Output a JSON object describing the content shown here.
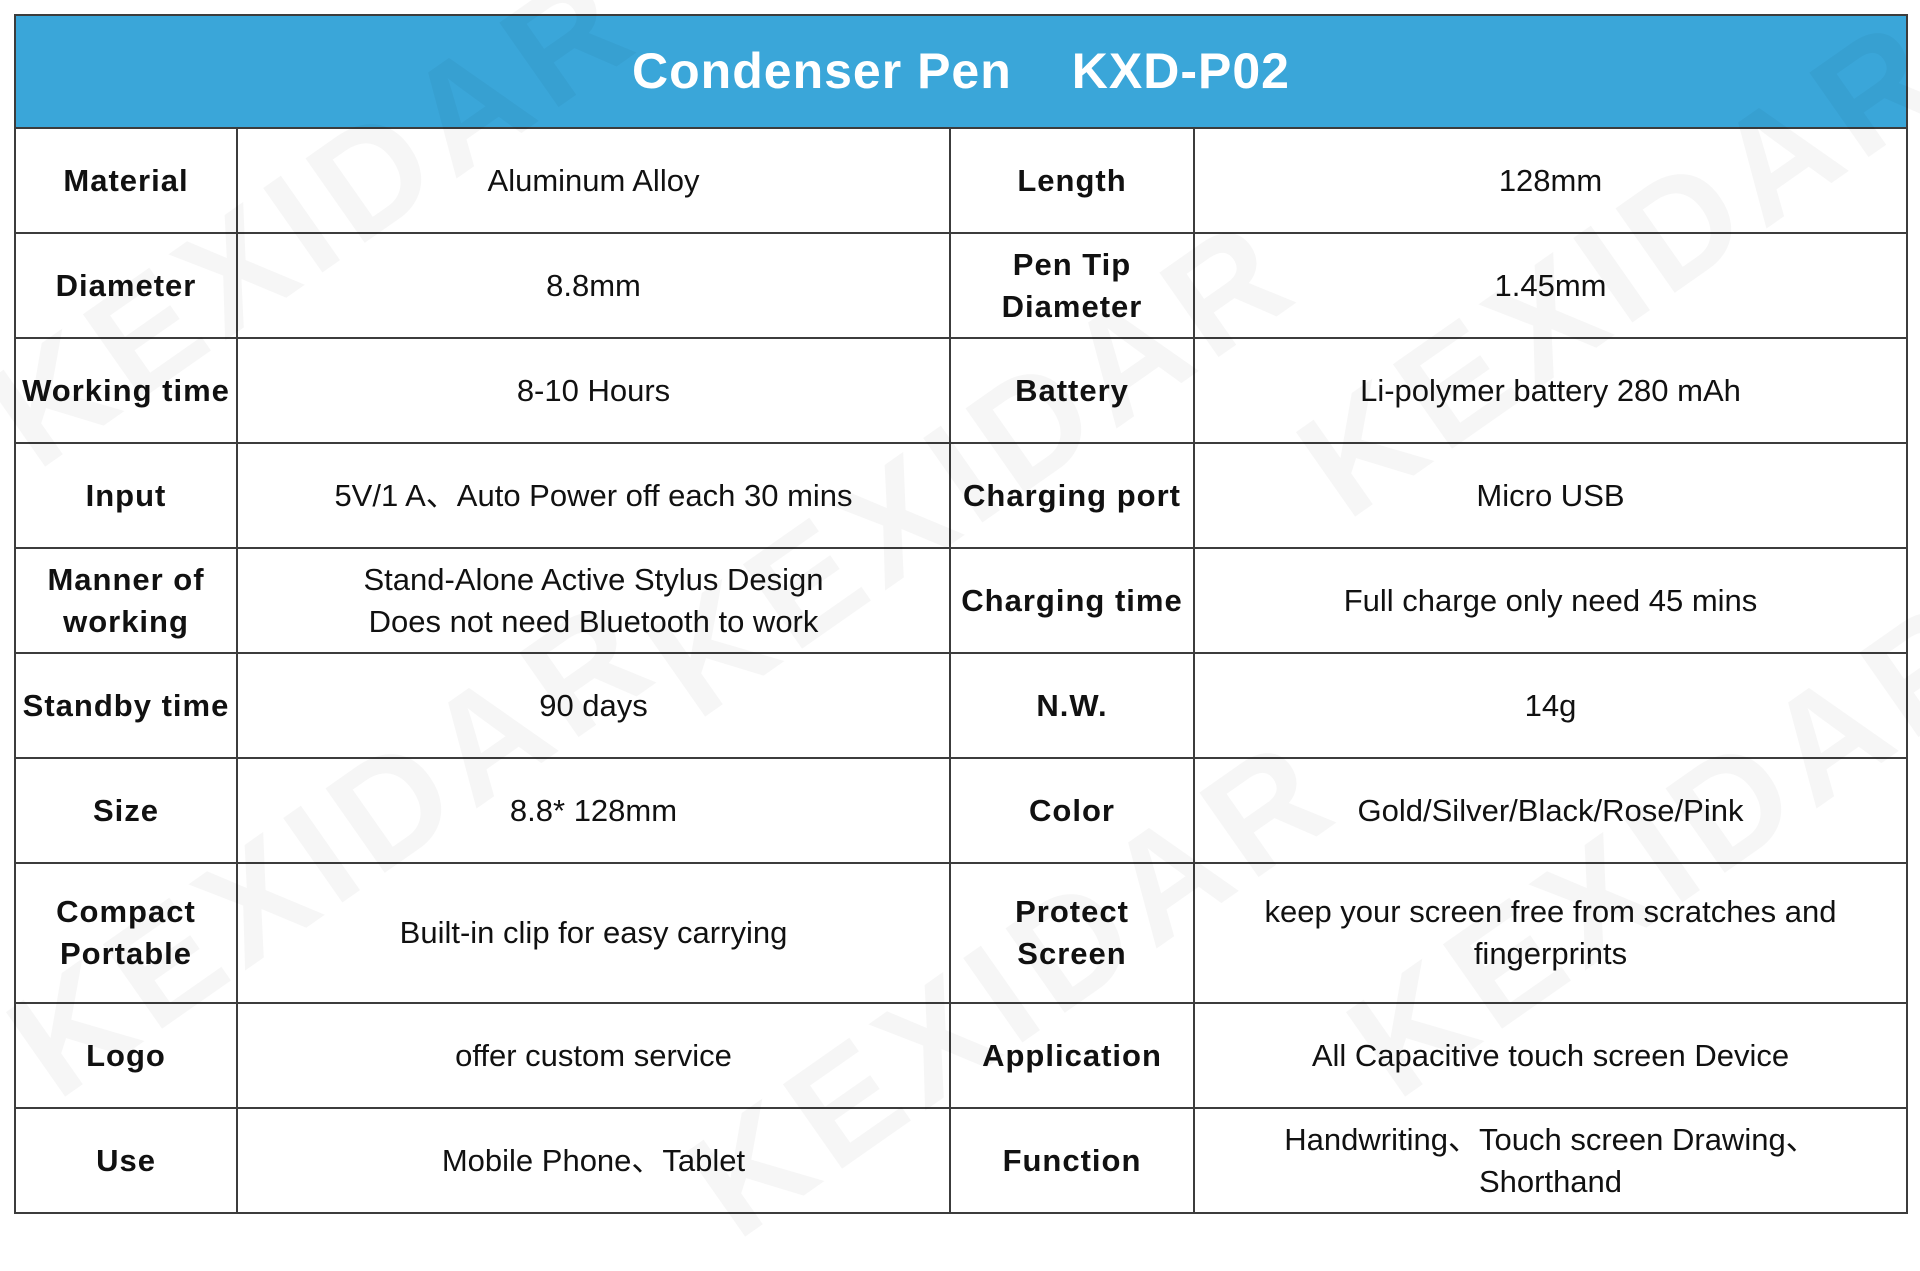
{
  "colors": {
    "header_background": "#3aa6d9",
    "header_text": "#ffffff",
    "border": "#3c3c3c",
    "text": "#111111",
    "watermark": "KEXIDAR"
  },
  "header": {
    "product": "Condenser Pen",
    "model": "KXD-P02"
  },
  "watermark_text": "KEXIDAR",
  "rows": [
    {
      "label1": "Material",
      "value1": [
        "Aluminum Alloy"
      ],
      "label2": "Length",
      "value2": [
        "128mm"
      ]
    },
    {
      "label1": "Diameter",
      "value1": [
        "8.8mm"
      ],
      "label2": [
        "Pen Tip",
        "Diameter"
      ],
      "value2": [
        "1.45mm"
      ]
    },
    {
      "label1": "Working time",
      "value1": [
        "8-10 Hours"
      ],
      "label2": "Battery",
      "value2": [
        "Li-polymer battery 280 mAh"
      ]
    },
    {
      "label1": "Input",
      "value1": [
        "5V/1 A、Auto Power off each 30 mins"
      ],
      "label2": "Charging port",
      "value2": [
        "Micro USB"
      ]
    },
    {
      "label1": [
        "Manner of",
        "working"
      ],
      "value1": [
        "Stand-Alone Active Stylus Design",
        "Does not need Bluetooth to work"
      ],
      "label2": "Charging time",
      "value2": [
        "Full charge only need 45 mins"
      ]
    },
    {
      "label1": "Standby time",
      "value1": [
        "90 days"
      ],
      "label2": "N.W.",
      "value2": [
        "14g"
      ]
    },
    {
      "label1": "Size",
      "value1": [
        "8.8* 128mm"
      ],
      "label2": "Color",
      "value2": [
        "Gold/Silver/Black/Rose/Pink"
      ]
    },
    {
      "label1": [
        "Compact",
        "Portable"
      ],
      "value1": [
        "Built-in clip for easy carrying"
      ],
      "label2": [
        "Protect",
        "Screen"
      ],
      "value2": [
        "keep your screen free from scratches and",
        "fingerprints"
      ]
    },
    {
      "label1": "Logo",
      "value1": [
        "offer custom service"
      ],
      "label2": "Application",
      "value2": [
        "All Capacitive touch screen Device"
      ]
    },
    {
      "label1": "Use",
      "value1": [
        "Mobile Phone、Tablet"
      ],
      "label2": "Function",
      "value2": [
        "Handwriting、Touch screen Drawing、",
        "Shorthand"
      ]
    }
  ]
}
